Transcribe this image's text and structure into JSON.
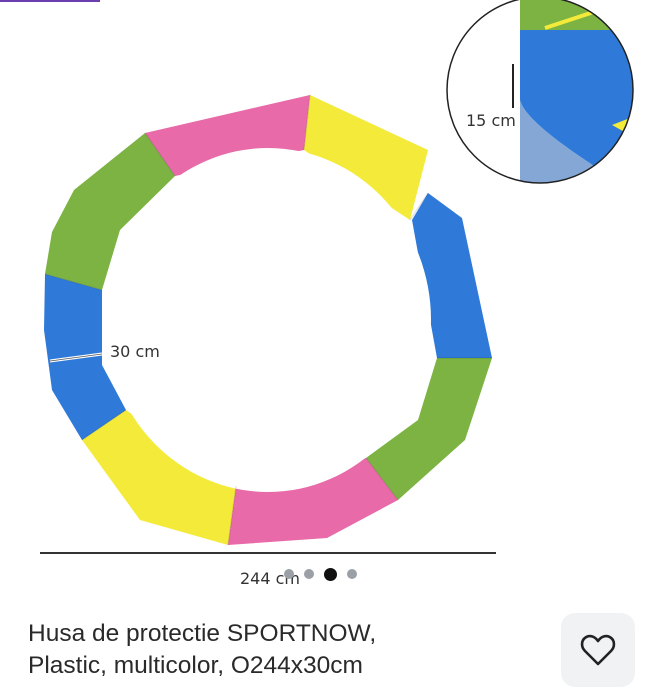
{
  "product": {
    "title_line1": "Husa de protectie SPORTNOW,",
    "title_line2": "Plastic, multicolor, O244x30cm",
    "favorite_icon": "heart-outline-icon"
  },
  "image": {
    "dimension_height": "15 cm",
    "dimension_width": "30 cm",
    "dimension_diameter": "244 cm"
  },
  "gallery": {
    "total": 4,
    "active_index": 2
  },
  "colors": {
    "green": "#7cb342",
    "pink": "#e86aa8",
    "yellow": "#f4ea3a",
    "blue": "#2f7ad8"
  }
}
